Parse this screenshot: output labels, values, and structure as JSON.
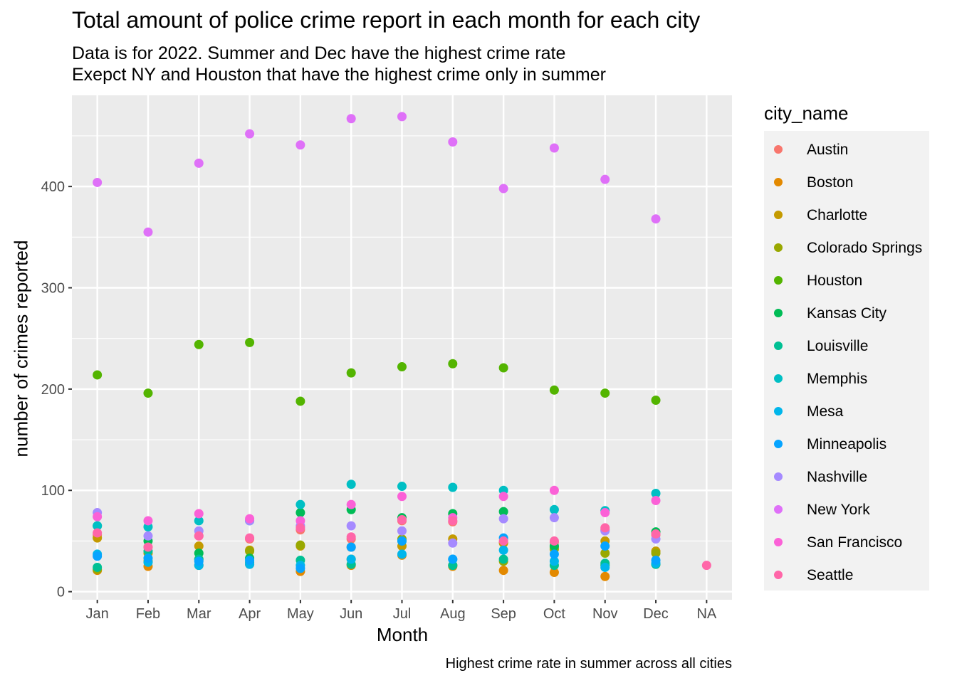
{
  "chart_data": {
    "type": "scatter",
    "title": "Total amount of police crime report in each month for each city",
    "subtitle": [
      "Data is for 2022. Summer and Dec have the highest crime rate",
      "Exepct NY and Houston that have the highest crime only in summer"
    ],
    "caption": "Highest crime rate in summer across all cities",
    "xlabel": "Month",
    "ylabel": "number of crimes reported",
    "categories": [
      "Jan",
      "Feb",
      "Mar",
      "Apr",
      "May",
      "Jun",
      "Jul",
      "Aug",
      "Sep",
      "Oct",
      "Nov",
      "Dec",
      "NA"
    ],
    "yticks": [
      0,
      100,
      200,
      300,
      400
    ],
    "ylim": [
      -8,
      490
    ],
    "grid": true,
    "legend_title": "city_name",
    "legend_position": "right",
    "series": [
      {
        "name": "Austin",
        "color": "#F8766D",
        "values": [
          56,
          44,
          55,
          52,
          61,
          52,
          70,
          69,
          49,
          49,
          61,
          56,
          null
        ]
      },
      {
        "name": "Boston",
        "color": "#E38900",
        "values": [
          21,
          25,
          26,
          27,
          20,
          26,
          36,
          25,
          21,
          19,
          15,
          27,
          null
        ]
      },
      {
        "name": "Charlotte",
        "color": "#C49A00",
        "values": [
          53,
          38,
          45,
          41,
          45,
          44,
          45,
          52,
          48,
          44,
          50,
          40,
          null
        ]
      },
      {
        "name": "Colorado Springs",
        "color": "#99A800",
        "values": [
          22,
          30,
          32,
          40,
          46,
          32,
          52,
          26,
          30,
          42,
          38,
          38,
          null
        ]
      },
      {
        "name": "Houston",
        "color": "#53B400",
        "values": [
          214,
          196,
          244,
          246,
          188,
          216,
          222,
          225,
          221,
          199,
          196,
          189,
          null
        ]
      },
      {
        "name": "Kansas City",
        "color": "#00BC56",
        "values": [
          65,
          50,
          38,
          33,
          78,
          81,
          73,
          77,
          79,
          45,
          26,
          59,
          null
        ]
      },
      {
        "name": "Louisville",
        "color": "#00C094",
        "values": [
          24,
          40,
          32,
          29,
          31,
          27,
          50,
          26,
          32,
          26,
          28,
          27,
          null
        ]
      },
      {
        "name": "Memphis",
        "color": "#00BFC4",
        "values": [
          65,
          64,
          70,
          70,
          86,
          106,
          104,
          103,
          100,
          81,
          80,
          97,
          null
        ]
      },
      {
        "name": "Mesa",
        "color": "#00B6EB",
        "values": [
          37,
          29,
          26,
          27,
          26,
          32,
          37,
          32,
          41,
          30,
          24,
          28,
          null
        ]
      },
      {
        "name": "Minneapolis",
        "color": "#06A4FF",
        "values": [
          35,
          33,
          30,
          31,
          23,
          44,
          50,
          32,
          53,
          37,
          45,
          31,
          null
        ]
      },
      {
        "name": "Nashville",
        "color": "#A58AFF",
        "values": [
          78,
          55,
          60,
          70,
          65,
          65,
          60,
          48,
          72,
          73,
          60,
          52,
          null
        ]
      },
      {
        "name": "New York",
        "color": "#DF70F8",
        "values": [
          404,
          355,
          423,
          452,
          441,
          467,
          469,
          444,
          398,
          438,
          407,
          368,
          null
        ]
      },
      {
        "name": "San Francisco",
        "color": "#FB61D7",
        "values": [
          74,
          70,
          77,
          72,
          70,
          86,
          94,
          73,
          94,
          100,
          78,
          90,
          null
        ]
      },
      {
        "name": "Seattle",
        "color": "#FF66A8",
        "values": [
          58,
          44,
          55,
          53,
          63,
          54,
          71,
          70,
          50,
          50,
          63,
          57,
          26
        ]
      }
    ]
  }
}
